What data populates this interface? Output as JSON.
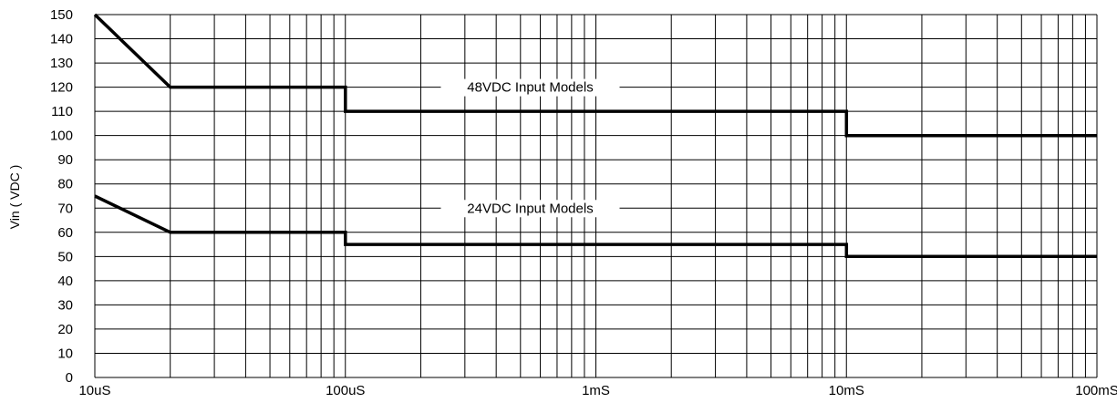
{
  "chart_data": {
    "type": "line",
    "title": "",
    "xlabel": "",
    "ylabel": "Vin ( VDC )",
    "x_scale": "log",
    "xlim_seconds": [
      1e-05,
      0.1
    ],
    "ylim": [
      0,
      150
    ],
    "y_ticks": [
      0,
      10,
      20,
      30,
      40,
      50,
      60,
      70,
      80,
      90,
      100,
      110,
      120,
      130,
      140,
      150
    ],
    "x_tick_labels": [
      "10uS",
      "100uS",
      "1mS",
      "10mS",
      "100mS"
    ],
    "x_tick_values_seconds": [
      1e-05,
      0.0001,
      0.001,
      0.01,
      0.1
    ],
    "grid": true,
    "series": [
      {
        "name": "48VDC Input Models",
        "x_seconds": [
          1e-05,
          2e-05,
          0.0001,
          0.0001,
          0.01,
          0.01,
          0.1
        ],
        "y": [
          150,
          120,
          120,
          110,
          110,
          100,
          100
        ]
      },
      {
        "name": "24VDC Input Models",
        "x_seconds": [
          1e-05,
          2e-05,
          0.0001,
          0.0001,
          0.01,
          0.01,
          0.1
        ],
        "y": [
          75,
          60,
          60,
          55,
          55,
          50,
          50
        ]
      }
    ]
  }
}
